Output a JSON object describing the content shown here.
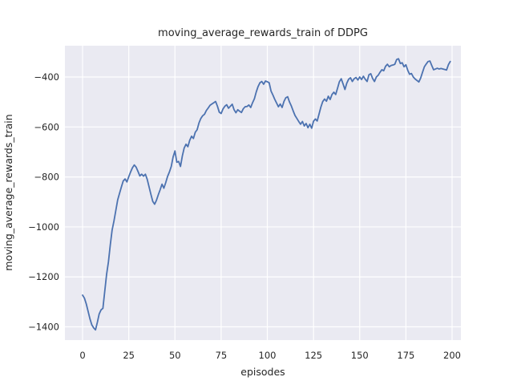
{
  "chart_data": {
    "type": "line",
    "title": "moving_average_rewards_train of DDPG",
    "xlabel": "episodes",
    "ylabel": "moving_average_rewards_train",
    "grid": true,
    "legend": "none",
    "style": {
      "figure_bg": "#ffffff",
      "axes_bg": "#eaeaf2",
      "grid_color": "#ffffff",
      "line_color": "#4c72b0",
      "text_color": "#262626",
      "line_width": 1.8
    },
    "xlim": [
      -9.55,
      204.77
    ],
    "ylim": [
      -1452.9,
      -274.8
    ],
    "xticks": [
      0,
      25,
      50,
      75,
      100,
      125,
      150,
      175,
      200
    ],
    "xtick_labels": [
      "0",
      "25",
      "50",
      "75",
      "100",
      "125",
      "150",
      "175",
      "200"
    ],
    "yticks": [
      -400,
      -600,
      -800,
      -1000,
      -1200,
      -1400
    ],
    "ytick_labels": [
      "−400",
      "−600",
      "−800",
      "−1000",
      "−1200",
      "−1400"
    ],
    "series": [
      {
        "name": "moving_average_rewards_train",
        "x_start": 0,
        "x_step": 1,
        "y": [
          -1273,
          -1285,
          -1308,
          -1338,
          -1368,
          -1392,
          -1404,
          -1412,
          -1382,
          -1348,
          -1332,
          -1326,
          -1258,
          -1190,
          -1140,
          -1072,
          -1012,
          -976,
          -934,
          -892,
          -866,
          -840,
          -816,
          -808,
          -820,
          -799,
          -780,
          -763,
          -752,
          -761,
          -778,
          -796,
          -789,
          -797,
          -789,
          -810,
          -840,
          -870,
          -898,
          -909,
          -893,
          -871,
          -851,
          -829,
          -845,
          -823,
          -798,
          -780,
          -758,
          -720,
          -696,
          -741,
          -738,
          -758,
          -716,
          -684,
          -669,
          -679,
          -653,
          -637,
          -646,
          -621,
          -611,
          -584,
          -566,
          -555,
          -549,
          -534,
          -524,
          -513,
          -508,
          -503,
          -498,
          -517,
          -541,
          -546,
          -528,
          -517,
          -511,
          -525,
          -517,
          -509,
          -531,
          -543,
          -531,
          -537,
          -542,
          -527,
          -519,
          -518,
          -512,
          -522,
          -503,
          -487,
          -460,
          -438,
          -423,
          -418,
          -429,
          -416,
          -419,
          -423,
          -456,
          -472,
          -489,
          -504,
          -519,
          -508,
          -522,
          -498,
          -483,
          -479,
          -500,
          -516,
          -536,
          -554,
          -566,
          -578,
          -589,
          -578,
          -596,
          -586,
          -603,
          -589,
          -605,
          -577,
          -568,
          -576,
          -548,
          -520,
          -498,
          -488,
          -497,
          -477,
          -490,
          -470,
          -461,
          -470,
          -445,
          -419,
          -407,
          -428,
          -450,
          -425,
          -409,
          -403,
          -418,
          -407,
          -402,
          -412,
          -400,
          -410,
          -397,
          -409,
          -418,
          -391,
          -387,
          -406,
          -418,
          -400,
          -393,
          -381,
          -371,
          -375,
          -357,
          -349,
          -359,
          -354,
          -352,
          -349,
          -330,
          -327,
          -346,
          -343,
          -359,
          -351,
          -373,
          -389,
          -386,
          -400,
          -408,
          -414,
          -420,
          -404,
          -381,
          -359,
          -348,
          -338,
          -336,
          -354,
          -371,
          -368,
          -365,
          -368,
          -366,
          -368,
          -370,
          -372,
          -351,
          -338
        ]
      }
    ]
  }
}
